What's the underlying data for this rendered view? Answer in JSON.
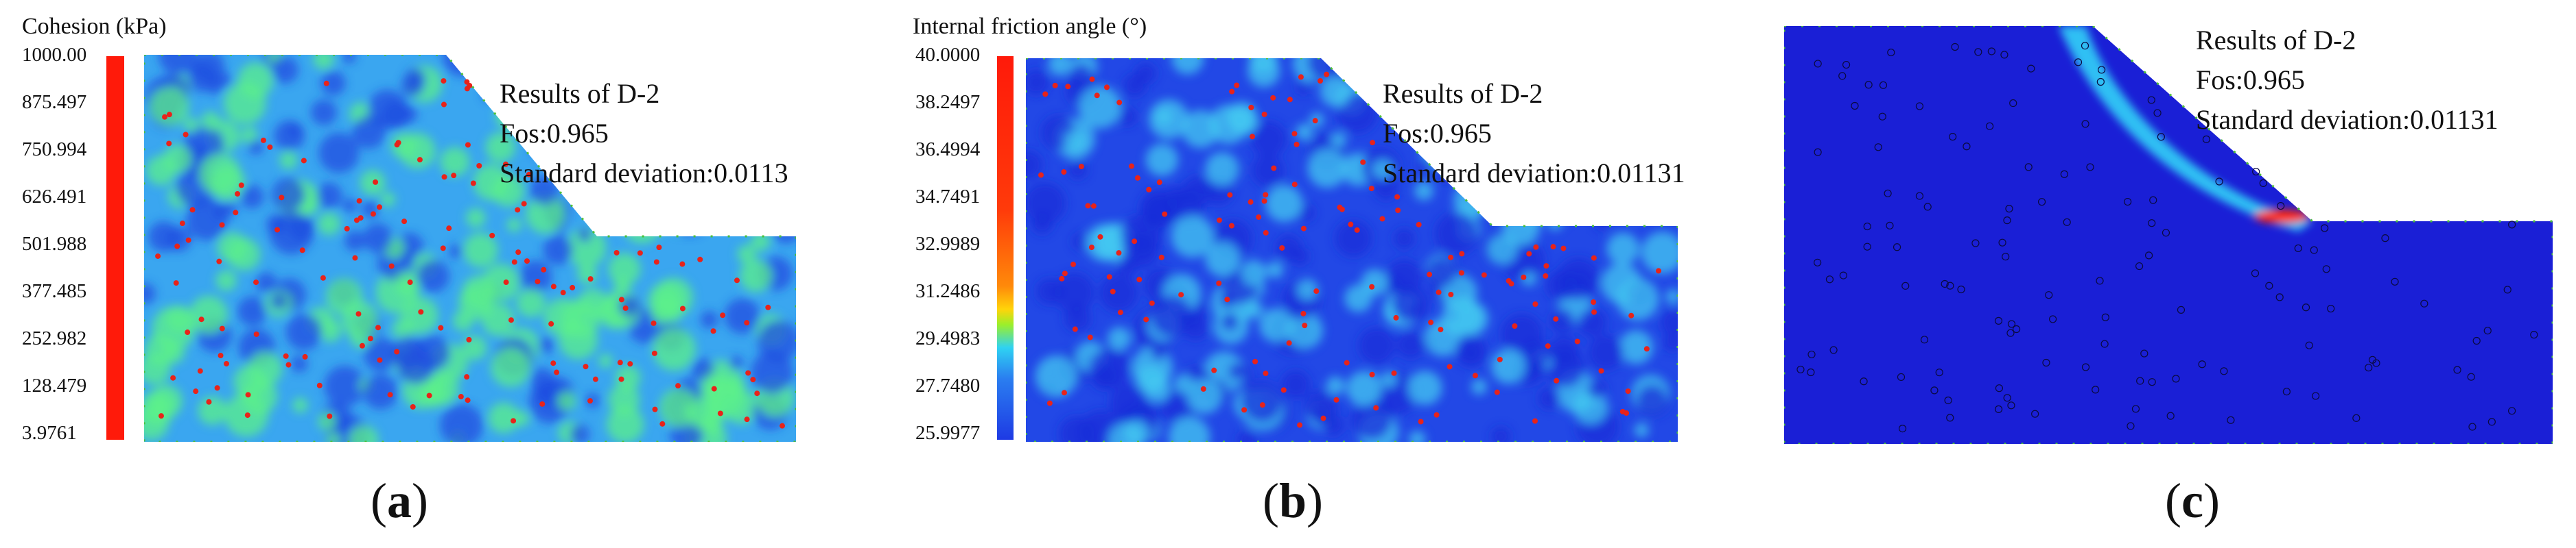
{
  "panels": [
    {
      "colorbar_title": "Cohesion (kPa)",
      "ticks": [
        "1000.00",
        "875.497",
        "750.994",
        "626.491",
        "501.988",
        "377.485",
        "252.982",
        "128.479",
        "3.9761"
      ],
      "annotation": [
        "Results of D-2",
        "Fos:0.965",
        "Standard deviation:0.0113"
      ],
      "label_open": "(",
      "label_letter": "a",
      "label_close": ")",
      "colors": {
        "base": "#3aa6f0",
        "low": "#1f4de0",
        "high": "#5cf08a",
        "marker": "#e8231a"
      }
    },
    {
      "colorbar_title": "Internal friction angle (°)",
      "ticks": [
        "40.0000",
        "38.2497",
        "36.4994",
        "34.7491",
        "32.9989",
        "31.2486",
        "29.4983",
        "27.7480",
        "25.9977"
      ],
      "annotation": [
        "Results of D-2",
        "Fos:0.965",
        "Standard deviation:0.01131"
      ],
      "label_open": "(",
      "label_letter": "b",
      "label_close": ")",
      "colors": {
        "base": "#2248e6",
        "low": "#1a2fd8",
        "high": "#43c8f0",
        "marker": "#e8231a"
      }
    },
    {
      "annotation": [
        "Results of D-2",
        "Fos:0.965",
        "Standard deviation:0.01131"
      ],
      "label_open": "(",
      "label_letter": "c",
      "label_close": ")",
      "colors": {
        "base": "#1a1fd6",
        "band": "#31d2f7",
        "hot": "#ff2a10",
        "marker": "#0a0a40"
      }
    }
  ]
}
